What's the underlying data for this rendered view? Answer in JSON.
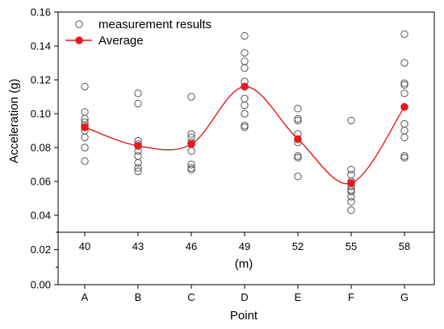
{
  "chart_data": {
    "type": "scatter",
    "xlabel": "Point",
    "secondary_xlabel": "(m)",
    "ylabel": "Acceleration (g)",
    "ylim": [
      0.03,
      0.16
    ],
    "yticks": [
      "0.04",
      "0.06",
      "0.08",
      "0.10",
      "0.12",
      "0.14",
      "0.16"
    ],
    "lower_panel_ylim": [
      0.0,
      0.03
    ],
    "lower_panel_yticks": [
      "0.00",
      "0.02"
    ],
    "categories": [
      "A",
      "B",
      "C",
      "D",
      "E",
      "F",
      "G"
    ],
    "distances": [
      "40",
      "43",
      "46",
      "49",
      "52",
      "55",
      "58"
    ],
    "grid": false,
    "legend_position": "top-left",
    "series": [
      {
        "name": "measurement results",
        "marker": "open-circle",
        "color": "#555555",
        "values": [
          [
            0.116,
            0.101,
            0.097,
            0.095,
            0.093,
            0.09,
            0.086,
            0.08,
            0.072
          ],
          [
            0.112,
            0.106,
            0.084,
            0.082,
            0.078,
            0.075,
            0.071,
            0.068,
            0.066
          ],
          [
            0.11,
            0.088,
            0.086,
            0.083,
            0.078,
            0.07,
            0.068,
            0.067
          ],
          [
            0.146,
            0.136,
            0.131,
            0.127,
            0.119,
            0.116,
            0.109,
            0.105,
            0.1,
            0.093,
            0.092
          ],
          [
            0.103,
            0.097,
            0.096,
            0.088,
            0.085,
            0.083,
            0.075,
            0.074,
            0.063
          ],
          [
            0.096,
            0.067,
            0.064,
            0.06,
            0.057,
            0.055,
            0.054,
            0.051,
            0.048,
            0.043
          ],
          [
            0.147,
            0.13,
            0.118,
            0.117,
            0.112,
            0.094,
            0.09,
            0.086,
            0.075,
            0.074
          ]
        ]
      },
      {
        "name": "Average",
        "marker": "filled-circle",
        "line": "smooth",
        "color": "#e8191c",
        "values": [
          0.092,
          0.081,
          0.082,
          0.116,
          0.085,
          0.059,
          0.104
        ]
      }
    ]
  }
}
